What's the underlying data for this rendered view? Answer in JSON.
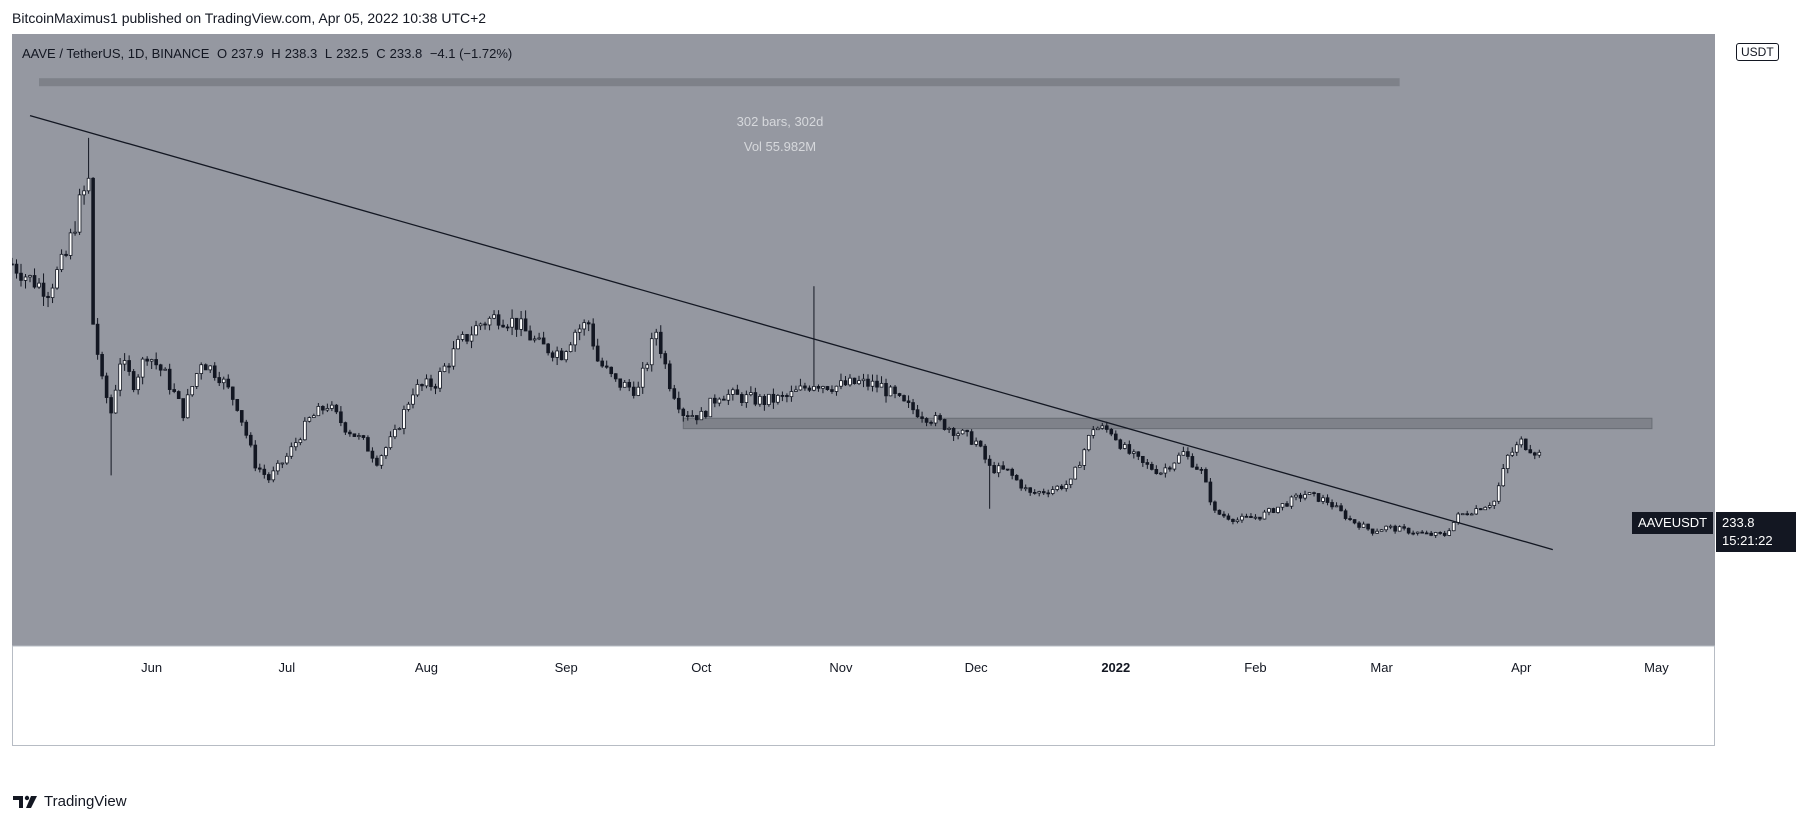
{
  "header": {
    "attribution": "BitcoinMaximus1 published on TradingView.com, Apr 05, 2022 10:38 UTC+2"
  },
  "legend": {
    "symbol": "AAVE / TetherUS, 1D, BINANCE",
    "open_label": "O",
    "open": "237.9",
    "high_label": "H",
    "high": "238.3",
    "low_label": "L",
    "low": "232.5",
    "close_label": "C",
    "close": "233.8",
    "change": "−4.1 (−1.72%)"
  },
  "measurement": {
    "bars": "302 bars, 302d",
    "volume": "Vol 55.982M"
  },
  "price_axis": {
    "unit": "USDT"
  },
  "price_label": {
    "ticker": "AAVEUSDT",
    "price": "233.8",
    "countdown": "15:21:22"
  },
  "footer": {
    "brand": "TradingView"
  },
  "colors": {
    "plot_bg": "#9598a1",
    "candle": "#131722",
    "trendline": "#131722",
    "zone": "#7b7e86"
  },
  "chart_data": {
    "type": "candlestick",
    "title": "AAVE / TetherUS, 1D, BINANCE",
    "ylim": [
      -25,
      800
    ],
    "y_ticks": [
      "800.0",
      "750.0",
      "700.0",
      "650.0",
      "600.0",
      "550.0",
      "500.0",
      "450.0",
      "400.0",
      "350.0",
      "300.0",
      "250.0",
      "200.0",
      "150.0",
      "100.0",
      "50.0",
      "0.0"
    ],
    "x_ticks": [
      {
        "label": "Jun",
        "date": "2021-06-01"
      },
      {
        "label": "Jul",
        "date": "2021-07-01"
      },
      {
        "label": "Aug",
        "date": "2021-08-01"
      },
      {
        "label": "Sep",
        "date": "2021-09-01"
      },
      {
        "label": "Oct",
        "date": "2021-10-01"
      },
      {
        "label": "Nov",
        "date": "2021-11-01"
      },
      {
        "label": "Dec",
        "date": "2021-12-01"
      },
      {
        "label": "2022",
        "date": "2022-01-01"
      },
      {
        "label": "Feb",
        "date": "2022-02-01"
      },
      {
        "label": "Mar",
        "date": "2022-03-01"
      },
      {
        "label": "Apr",
        "date": "2022-04-01"
      },
      {
        "label": "May",
        "date": "2022-05-01"
      }
    ],
    "x_range": [
      "2021-05-01",
      "2022-05-14"
    ],
    "price_path": [
      [
        "2021-05-01",
        490
      ],
      [
        "2021-05-05",
        470
      ],
      [
        "2021-05-09",
        455
      ],
      [
        "2021-05-13",
        500
      ],
      [
        "2021-05-16",
        570
      ],
      [
        "2021-05-18",
        600
      ],
      [
        "2021-05-19",
        410
      ],
      [
        "2021-05-21",
        330
      ],
      [
        "2021-05-23",
        290
      ],
      [
        "2021-05-25",
        360
      ],
      [
        "2021-05-28",
        330
      ],
      [
        "2021-05-31",
        370
      ],
      [
        "2021-06-04",
        340
      ],
      [
        "2021-06-08",
        290
      ],
      [
        "2021-06-12",
        360
      ],
      [
        "2021-06-16",
        340
      ],
      [
        "2021-06-20",
        300
      ],
      [
        "2021-06-24",
        220
      ],
      [
        "2021-06-27",
        200
      ],
      [
        "2021-07-01",
        230
      ],
      [
        "2021-07-06",
        280
      ],
      [
        "2021-07-10",
        300
      ],
      [
        "2021-07-14",
        270
      ],
      [
        "2021-07-18",
        250
      ],
      [
        "2021-07-21",
        225
      ],
      [
        "2021-07-25",
        260
      ],
      [
        "2021-07-29",
        320
      ],
      [
        "2021-08-03",
        330
      ],
      [
        "2021-08-08",
        380
      ],
      [
        "2021-08-13",
        410
      ],
      [
        "2021-08-17",
        420
      ],
      [
        "2021-08-21",
        410
      ],
      [
        "2021-08-26",
        380
      ],
      [
        "2021-08-31",
        370
      ],
      [
        "2021-09-03",
        400
      ],
      [
        "2021-09-06",
        410
      ],
      [
        "2021-09-08",
        360
      ],
      [
        "2021-09-12",
        330
      ],
      [
        "2021-09-17",
        320
      ],
      [
        "2021-09-21",
        400
      ],
      [
        "2021-09-24",
        330
      ],
      [
        "2021-09-27",
        290
      ],
      [
        "2021-10-01",
        285
      ],
      [
        "2021-10-05",
        315
      ],
      [
        "2021-10-10",
        310
      ],
      [
        "2021-10-15",
        305
      ],
      [
        "2021-10-20",
        310
      ],
      [
        "2021-10-26",
        330
      ],
      [
        "2021-10-31",
        325
      ],
      [
        "2021-11-05",
        330
      ],
      [
        "2021-11-10",
        325
      ],
      [
        "2021-11-15",
        300
      ],
      [
        "2021-11-20",
        285
      ],
      [
        "2021-11-25",
        270
      ],
      [
        "2021-12-01",
        250
      ],
      [
        "2021-12-04",
        215
      ],
      [
        "2021-12-08",
        210
      ],
      [
        "2021-12-13",
        180
      ],
      [
        "2021-12-17",
        185
      ],
      [
        "2021-12-22",
        195
      ],
      [
        "2021-12-27",
        270
      ],
      [
        "2021-12-31",
        265
      ],
      [
        "2022-01-03",
        240
      ],
      [
        "2022-01-07",
        220
      ],
      [
        "2022-01-11",
        210
      ],
      [
        "2022-01-16",
        235
      ],
      [
        "2022-01-20",
        210
      ],
      [
        "2022-01-23",
        155
      ],
      [
        "2022-01-28",
        145
      ],
      [
        "2022-02-02",
        150
      ],
      [
        "2022-02-07",
        165
      ],
      [
        "2022-02-12",
        180
      ],
      [
        "2022-02-17",
        170
      ],
      [
        "2022-02-22",
        145
      ],
      [
        "2022-02-27",
        130
      ],
      [
        "2022-03-02",
        135
      ],
      [
        "2022-03-07",
        130
      ],
      [
        "2022-03-11",
        125
      ],
      [
        "2022-03-15",
        125
      ],
      [
        "2022-03-18",
        150
      ],
      [
        "2022-03-22",
        160
      ],
      [
        "2022-03-26",
        170
      ],
      [
        "2022-03-29",
        230
      ],
      [
        "2022-04-01",
        250
      ],
      [
        "2022-04-05",
        233.8
      ]
    ],
    "wick_spikes": [
      {
        "date": "2021-05-18",
        "high": 660
      },
      {
        "date": "2021-05-23",
        "low": 205
      },
      {
        "date": "2021-10-26",
        "high": 460
      },
      {
        "date": "2021-12-04",
        "low": 160
      }
    ],
    "trendline": [
      [
        "2021-05-05",
        690
      ],
      [
        "2022-04-08",
        105
      ]
    ],
    "resistance_zone": {
      "from": "2021-09-27",
      "to": "2022-04-30",
      "low": 268,
      "high": 282
    },
    "measure_bar": {
      "from": "2021-05-07",
      "to": "2022-03-05",
      "level": 735
    }
  }
}
